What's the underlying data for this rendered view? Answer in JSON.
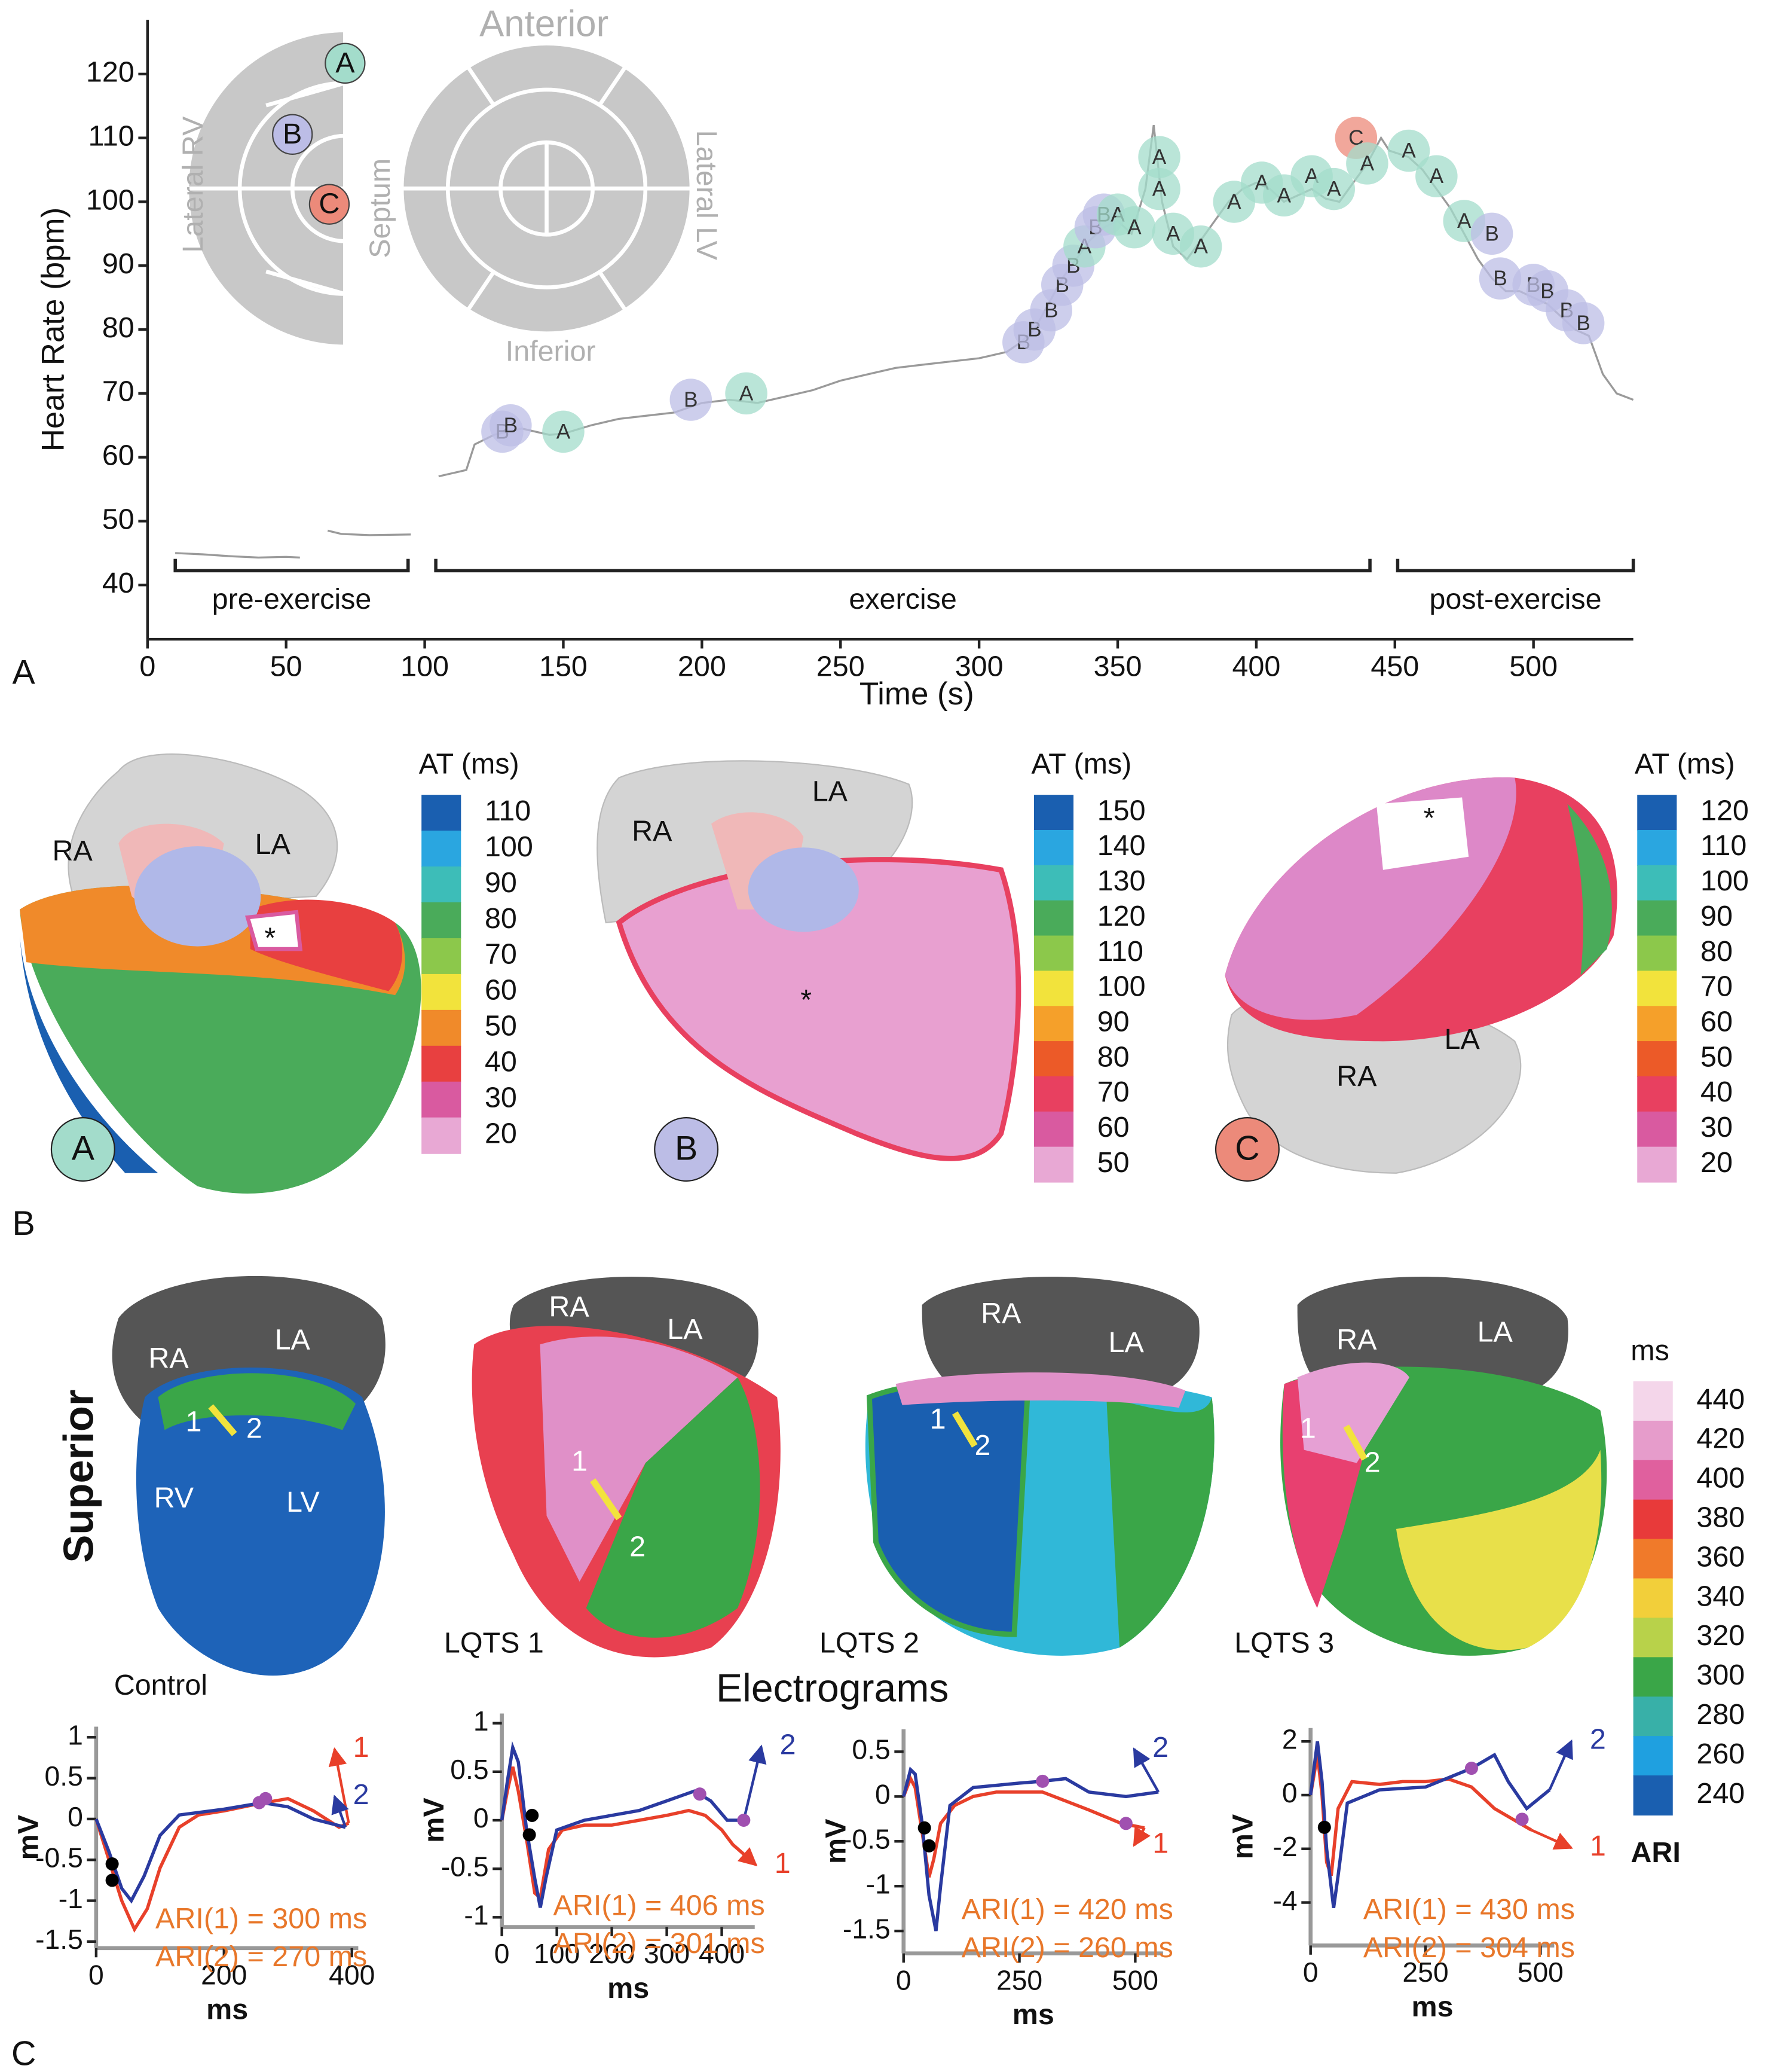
{
  "chart_data": [
    {
      "type": "line",
      "panel_label": "A",
      "xlabel": "Time (s)",
      "ylabel": "Heart Rate (bpm)",
      "xlim": [
        0,
        536
      ],
      "ylim": [
        31.5,
        128.5
      ],
      "xticks": [
        0,
        50,
        100,
        150,
        200,
        250,
        300,
        350,
        400,
        450,
        500
      ],
      "yticks": [
        40,
        50,
        60,
        70,
        80,
        90,
        100,
        110,
        120
      ],
      "series": [
        {
          "color": "#9a9a9a",
          "x": [
            10,
            20,
            30,
            40,
            50,
            55,
            60,
            65,
            70,
            80,
            95,
            100,
            105,
            110,
            115,
            118,
            125,
            135,
            145,
            150,
            160,
            170,
            180,
            190,
            200,
            210,
            220,
            230,
            240,
            250,
            260,
            270,
            280,
            290,
            300,
            310,
            315,
            320,
            325,
            330,
            335,
            340,
            345,
            350,
            355,
            360,
            363,
            366,
            370,
            375,
            380,
            385,
            390,
            395,
            400,
            405,
            410,
            415,
            420,
            425,
            430,
            435,
            440,
            445,
            448,
            455,
            460,
            465,
            470,
            475,
            480,
            485,
            490,
            495,
            500,
            505,
            510,
            515,
            520,
            525,
            530,
            536
          ],
          "values": [
            45,
            44.8,
            44.5,
            44.3,
            44.4,
            44.3,
            null,
            48.5,
            48,
            47.8,
            47.9,
            null,
            57,
            57.5,
            58,
            62,
            63.5,
            64.5,
            63.5,
            63.7,
            65,
            66,
            66.5,
            67,
            68.5,
            69,
            68.5,
            69.5,
            70.5,
            72,
            73,
            74,
            74.5,
            75,
            75.5,
            76.5,
            78,
            80,
            84,
            88,
            91,
            94,
            96,
            97,
            95,
            102,
            112,
            100,
            93,
            91,
            94,
            97,
            100,
            102,
            103,
            102,
            100,
            101,
            102,
            100.5,
            100,
            103,
            106,
            110,
            108,
            107,
            105,
            102,
            99,
            95,
            91,
            88,
            86,
            86,
            85,
            84,
            82,
            80,
            79,
            73,
            70,
            69
          ]
        }
      ],
      "markers": [
        {
          "label": "B",
          "x": 128,
          "y": 64,
          "color": "#bcbde6"
        },
        {
          "label": "B",
          "x": 131,
          "y": 65,
          "color": "#bcbde6"
        },
        {
          "label": "A",
          "x": 150,
          "y": 64,
          "color": "#a3dccb"
        },
        {
          "label": "B",
          "x": 196,
          "y": 69,
          "color": "#bcbde6"
        },
        {
          "label": "A",
          "x": 216,
          "y": 70,
          "color": "#a3dccb"
        },
        {
          "label": "B",
          "x": 316,
          "y": 78,
          "color": "#bcbde6"
        },
        {
          "label": "B",
          "x": 320,
          "y": 80,
          "color": "#bcbde6"
        },
        {
          "label": "B",
          "x": 326,
          "y": 83,
          "color": "#bcbde6"
        },
        {
          "label": "B",
          "x": 330,
          "y": 87,
          "color": "#bcbde6"
        },
        {
          "label": "B",
          "x": 334,
          "y": 90,
          "color": "#bcbde6"
        },
        {
          "label": "A",
          "x": 338,
          "y": 93,
          "color": "#a3dccb"
        },
        {
          "label": "B",
          "x": 342,
          "y": 96,
          "color": "#bcbde6"
        },
        {
          "label": "B",
          "x": 345,
          "y": 98,
          "color": "#bcbde6"
        },
        {
          "label": "A",
          "x": 350,
          "y": 98,
          "color": "#a3dccb"
        },
        {
          "label": "A",
          "x": 356,
          "y": 96,
          "color": "#a3dccb"
        },
        {
          "label": "A",
          "x": 365,
          "y": 107,
          "color": "#a3dccb"
        },
        {
          "label": "A",
          "x": 365,
          "y": 102,
          "color": "#a3dccb"
        },
        {
          "label": "A",
          "x": 370,
          "y": 95,
          "color": "#a3dccb"
        },
        {
          "label": "A",
          "x": 380,
          "y": 93,
          "color": "#a3dccb"
        },
        {
          "label": "A",
          "x": 392,
          "y": 100,
          "color": "#a3dccb"
        },
        {
          "label": "A",
          "x": 402,
          "y": 103,
          "color": "#a3dccb"
        },
        {
          "label": "A",
          "x": 410,
          "y": 101,
          "color": "#a3dccb"
        },
        {
          "label": "A",
          "x": 420,
          "y": 104,
          "color": "#a3dccb"
        },
        {
          "label": "A",
          "x": 428,
          "y": 102,
          "color": "#a3dccb"
        },
        {
          "label": "C",
          "x": 436,
          "y": 110,
          "color": "#ec8a7a"
        },
        {
          "label": "A",
          "x": 440,
          "y": 106,
          "color": "#a3dccb"
        },
        {
          "label": "A",
          "x": 455,
          "y": 108,
          "color": "#a3dccb"
        },
        {
          "label": "A",
          "x": 465,
          "y": 104,
          "color": "#a3dccb"
        },
        {
          "label": "A",
          "x": 475,
          "y": 97,
          "color": "#a3dccb"
        },
        {
          "label": "B",
          "x": 485,
          "y": 95,
          "color": "#bcbde6"
        },
        {
          "label": "B",
          "x": 488,
          "y": 88,
          "color": "#bcbde6"
        },
        {
          "label": "B",
          "x": 500,
          "y": 87,
          "color": "#bcbde6"
        },
        {
          "label": "B",
          "x": 505,
          "y": 86,
          "color": "#bcbde6"
        },
        {
          "label": "B",
          "x": 512,
          "y": 83,
          "color": "#bcbde6"
        },
        {
          "label": "B",
          "x": 518,
          "y": 81,
          "color": "#bcbde6"
        }
      ],
      "phases": [
        {
          "label": "pre-exercise",
          "start": 10,
          "end": 94
        },
        {
          "label": "exercise",
          "start": 104,
          "end": 441
        },
        {
          "label": "post-exercise",
          "start": 451,
          "end": 536
        }
      ]
    },
    {
      "type": "line",
      "xlabel": "ms",
      "ylabel": "mV",
      "xlim": [
        0,
        410
      ],
      "ylim": [
        -1.58,
        1.13
      ],
      "xticks": [
        0,
        200,
        400
      ],
      "yticks": [
        1,
        0.5,
        0,
        -0.5,
        -1,
        -1.5
      ],
      "series": [
        {
          "name": "1",
          "color": "#e8402a",
          "x": [
            0,
            20,
            40,
            60,
            80,
            100,
            130,
            160,
            200,
            250,
            300,
            340,
            380,
            395
          ],
          "values": [
            0,
            -0.5,
            -1,
            -1.35,
            -1.1,
            -0.6,
            -0.1,
            0.05,
            0.1,
            0.18,
            0.25,
            0.1,
            -0.1,
            -0.05
          ]
        },
        {
          "name": "2",
          "color": "#2a3aa0",
          "x": [
            0,
            20,
            40,
            55,
            75,
            100,
            130,
            200,
            260,
            300,
            340,
            390
          ],
          "values": [
            0,
            -0.4,
            -0.85,
            -1,
            -0.7,
            -0.2,
            0.05,
            0.12,
            0.2,
            0.15,
            0,
            -0.1
          ]
        }
      ],
      "dots": [
        {
          "x": 25,
          "y": -0.55,
          "color": "#000000"
        },
        {
          "x": 25,
          "y": -0.75,
          "color": "#000000"
        },
        {
          "x": 255,
          "y": 0.2,
          "color": "#a050b0"
        },
        {
          "x": 265,
          "y": 0.25,
          "color": "#a050b0"
        }
      ],
      "annotations": [
        "ARI(1) = 300 ms",
        "ARI(2) = 270 ms"
      ]
    },
    {
      "type": "line",
      "xlabel": "ms",
      "ylabel": "mV",
      "xlim": [
        0,
        460
      ],
      "ylim": [
        -1.1,
        1.1
      ],
      "xticks": [
        0,
        100,
        200,
        300,
        400
      ],
      "yticks": [
        1,
        0.5,
        0,
        -0.5,
        -1
      ],
      "series": [
        {
          "name": "1",
          "color": "#e8402a",
          "x": [
            0,
            10,
            20,
            30,
            45,
            60,
            70,
            85,
            110,
            150,
            200,
            250,
            300,
            340,
            370,
            400,
            420,
            440
          ],
          "values": [
            0,
            0.3,
            0.55,
            0.3,
            -0.2,
            -0.75,
            -0.8,
            -0.3,
            -0.1,
            -0.05,
            -0.05,
            0,
            0.05,
            0.1,
            0.05,
            -0.1,
            -0.25,
            -0.35
          ]
        },
        {
          "name": "2",
          "color": "#2a3aa0",
          "x": [
            0,
            10,
            20,
            30,
            45,
            60,
            70,
            80,
            100,
            150,
            200,
            250,
            300,
            350,
            380,
            410,
            440
          ],
          "values": [
            0,
            0.4,
            0.75,
            0.6,
            -0.1,
            -0.6,
            -0.9,
            -0.6,
            -0.1,
            0,
            0.05,
            0.1,
            0.2,
            0.3,
            0.2,
            0,
            0
          ]
        }
      ],
      "dots": [
        {
          "x": 50,
          "y": -0.15,
          "color": "#000000"
        },
        {
          "x": 55,
          "y": 0.05,
          "color": "#000000"
        },
        {
          "x": 360,
          "y": 0.27,
          "color": "#a050b0"
        },
        {
          "x": 440,
          "y": 0,
          "color": "#a050b0"
        }
      ],
      "annotations": [
        "ARI(1) = 406 ms",
        "ARI(2) = 301 ms"
      ]
    },
    {
      "type": "line",
      "xlabel": "ms",
      "ylabel": "mV",
      "xlim": [
        0,
        560
      ],
      "ylim": [
        -1.75,
        0.75
      ],
      "xticks": [
        0,
        250,
        500
      ],
      "yticks": [
        0.5,
        0,
        -0.5,
        -1,
        -1.5
      ],
      "series": [
        {
          "name": "1",
          "color": "#e8402a",
          "x": [
            0,
            15,
            25,
            40,
            55,
            65,
            80,
            110,
            150,
            200,
            300,
            350,
            400,
            470,
            520
          ],
          "values": [
            0,
            0.2,
            0.1,
            -0.4,
            -0.9,
            -0.7,
            -0.3,
            -0.1,
            0,
            0.05,
            0.05,
            -0.05,
            -0.15,
            -0.3,
            -0.35
          ]
        },
        {
          "name": "2",
          "color": "#2a3aa0",
          "x": [
            0,
            15,
            25,
            40,
            55,
            70,
            80,
            100,
            150,
            250,
            300,
            350,
            400,
            480,
            550
          ],
          "values": [
            0,
            0.3,
            0.25,
            -0.3,
            -1.1,
            -1.5,
            -1,
            -0.1,
            0.1,
            0.15,
            0.17,
            0.2,
            0.05,
            0,
            0.05
          ]
        }
      ],
      "dots": [
        {
          "x": 45,
          "y": -0.35,
          "color": "#000000"
        },
        {
          "x": 55,
          "y": -0.55,
          "color": "#000000"
        },
        {
          "x": 300,
          "y": 0.17,
          "color": "#a050b0"
        },
        {
          "x": 480,
          "y": -0.3,
          "color": "#a050b0"
        }
      ],
      "annotations": [
        "ARI(1) = 420 ms",
        "ARI(2) = 260 ms"
      ]
    },
    {
      "type": "line",
      "xlabel": "ms",
      "ylabel": "mV",
      "xlim": [
        0,
        530
      ],
      "ylim": [
        -5.6,
        2.5
      ],
      "xticks": [
        0,
        250,
        500
      ],
      "yticks": [
        2,
        0,
        -2,
        -4
      ],
      "series": [
        {
          "name": "1",
          "color": "#e8402a",
          "x": [
            0,
            15,
            25,
            35,
            45,
            60,
            90,
            150,
            200,
            250,
            300,
            350,
            400,
            450,
            480
          ],
          "values": [
            0,
            1.5,
            0,
            -2.5,
            -3,
            -0.5,
            0.5,
            0.4,
            0.5,
            0.5,
            0.6,
            0.3,
            -0.5,
            -1,
            -1.3
          ]
        },
        {
          "name": "2",
          "color": "#2a3aa0",
          "x": [
            0,
            15,
            25,
            35,
            50,
            60,
            80,
            150,
            250,
            350,
            400,
            430,
            470,
            520
          ],
          "values": [
            0,
            2,
            0.5,
            -2,
            -4.2,
            -3,
            -0.3,
            0.2,
            0.3,
            1,
            1.5,
            0.5,
            -0.5,
            0.2
          ]
        }
      ],
      "dots": [
        {
          "x": 30,
          "y": -1.2,
          "color": "#000000"
        },
        {
          "x": 350,
          "y": 1,
          "color": "#a050b0"
        },
        {
          "x": 460,
          "y": -0.9,
          "color": "#a050b0"
        }
      ],
      "annotations": [
        "ARI(1) = 430 ms",
        "ARI(2) = 304 ms"
      ]
    }
  ],
  "panel_a_inset": {
    "labels": [
      "Lateral RV",
      "Septum",
      "Anterior",
      "Lateral LV",
      "Inferior"
    ],
    "points": [
      "A",
      "B",
      "C"
    ]
  },
  "panel_b": {
    "label": "B",
    "hearts": [
      {
        "badge": "A",
        "labels": [
          "RA",
          "LA",
          "*"
        ]
      },
      {
        "badge": "B",
        "labels": [
          "LA",
          "RA",
          "*"
        ]
      },
      {
        "badge": "C",
        "labels": [
          "*",
          "RA",
          "LA"
        ]
      }
    ],
    "colorbars": [
      {
        "title": "AT (ms)",
        "labels": [
          110,
          100,
          90,
          80,
          70,
          60,
          50,
          40,
          30,
          20
        ],
        "colors": [
          "#1a5fb0",
          "#2aa6e0",
          "#3dbdb8",
          "#4aab5a",
          "#8cc84b",
          "#f2e33c",
          "#f08a2a",
          "#e84040",
          "#d95aa0",
          "#e8a8d4"
        ]
      },
      {
        "title": "AT (ms)",
        "labels": [
          150,
          140,
          130,
          120,
          110,
          100,
          90,
          80,
          70,
          60,
          50
        ],
        "colors": [
          "#1a5fb0",
          "#2aa6e0",
          "#3dbdb8",
          "#4aab5a",
          "#8cc84b",
          "#f2e33c",
          "#f5a02a",
          "#ec5a28",
          "#e84060",
          "#d95aa0",
          "#e8a8d4"
        ]
      },
      {
        "title": "AT (ms)",
        "labels": [
          120,
          110,
          100,
          90,
          80,
          70,
          60,
          50,
          40,
          30,
          20
        ],
        "colors": [
          "#1a5fb0",
          "#2aa6e0",
          "#3dbdb8",
          "#4aab5a",
          "#8cc84b",
          "#f2e33c",
          "#f5a02a",
          "#ec5a28",
          "#e84060",
          "#d95aa0",
          "#e8a8d4"
        ]
      }
    ]
  },
  "panel_c": {
    "label": "C",
    "view": "Superior",
    "title": "Electrograms",
    "hearts": [
      {
        "name": "Control",
        "labels": [
          "RA",
          "LA",
          "1",
          "2",
          "RV",
          "LV"
        ]
      },
      {
        "name": "LQTS 1",
        "labels": [
          "RA",
          "LA",
          "1",
          "2"
        ]
      },
      {
        "name": "LQTS 2",
        "labels": [
          "RA",
          "LA",
          "1",
          "2"
        ]
      },
      {
        "name": "LQTS 3",
        "labels": [
          "RA",
          "LA",
          "1",
          "2"
        ]
      }
    ],
    "colorbar": {
      "title": "ms",
      "labels": [
        440,
        420,
        400,
        380,
        360,
        340,
        320,
        300,
        280,
        260,
        240
      ],
      "footer": "ARI",
      "colors": [
        "#f4d6ea",
        "#e69ccb",
        "#e0609e",
        "#e83a3a",
        "#f07a2a",
        "#f2cf3a",
        "#b8d24a",
        "#3aa648",
        "#38b0a8",
        "#1fa0e0",
        "#1a5fb0"
      ]
    }
  }
}
